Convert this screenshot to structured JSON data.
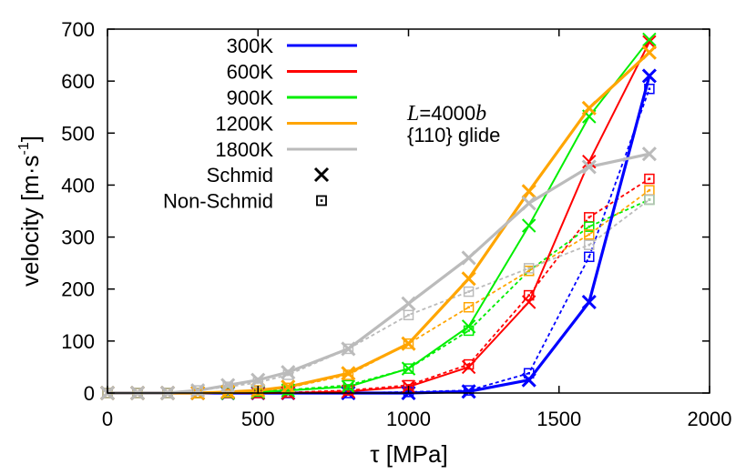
{
  "chart_data": {
    "type": "line",
    "title": "",
    "xlabel": "τ [MPa]",
    "ylabel_main": "velocity [m·s",
    "ylabel_exp": "-1",
    "ylabel_end": "]",
    "xlim": [
      0,
      2000
    ],
    "ylim": [
      0,
      700
    ],
    "xticks": [
      0,
      500,
      1000,
      1500,
      2000
    ],
    "yticks": [
      0,
      100,
      200,
      300,
      400,
      500,
      600,
      700
    ],
    "legend_position": "top-left",
    "annotation_italic": "L",
    "annotation_line1_rest": "=4000",
    "annotation_italic2": "b",
    "annotation_line2": "{110} glide",
    "marker_legend": [
      {
        "label": "Schmid",
        "marker": "cross"
      },
      {
        "label": "Non-Schmid",
        "marker": "dotted-square"
      }
    ],
    "series": [
      {
        "name": "300K",
        "color": "#0000ff",
        "schmid_x": [
          0,
          100,
          200,
          300,
          400,
          500,
          600,
          800,
          1000,
          1200,
          1400,
          1600,
          1800
        ],
        "schmid_y": [
          0,
          0,
          0,
          0,
          0,
          0,
          0,
          0,
          0,
          3,
          25,
          175,
          610
        ],
        "nonschmid_x": [
          0,
          100,
          200,
          300,
          400,
          500,
          600,
          800,
          1000,
          1200,
          1400,
          1600,
          1800
        ],
        "nonschmid_y": [
          0,
          0,
          0,
          0,
          0,
          0,
          0,
          0,
          2,
          5,
          38,
          262,
          585
        ]
      },
      {
        "name": "600K",
        "color": "#ff0000",
        "schmid_x": [
          0,
          100,
          200,
          300,
          400,
          500,
          600,
          800,
          1000,
          1200,
          1400,
          1600,
          1800
        ],
        "schmid_y": [
          0,
          0,
          0,
          0,
          0,
          0,
          0,
          3,
          12,
          50,
          175,
          445,
          675
        ],
        "nonschmid_x": [
          0,
          100,
          200,
          300,
          400,
          500,
          600,
          800,
          1000,
          1200,
          1400,
          1600,
          1800
        ],
        "nonschmid_y": [
          0,
          0,
          0,
          0,
          0,
          0,
          1,
          5,
          15,
          55,
          188,
          338,
          412
        ]
      },
      {
        "name": "900K",
        "color": "#00ee00",
        "schmid_x": [
          0,
          100,
          200,
          300,
          400,
          500,
          600,
          800,
          1000,
          1200,
          1400,
          1600,
          1800
        ],
        "schmid_y": [
          0,
          0,
          0,
          0,
          0,
          2,
          5,
          12,
          47,
          128,
          322,
          532,
          680
        ],
        "nonschmid_x": [
          0,
          100,
          200,
          300,
          400,
          500,
          600,
          800,
          1000,
          1200,
          1400,
          1600,
          1800
        ],
        "nonschmid_y": [
          0,
          0,
          0,
          0,
          1,
          3,
          6,
          15,
          47,
          120,
          235,
          320,
          372
        ]
      },
      {
        "name": "1200K",
        "color": "#ffa500",
        "schmid_x": [
          0,
          100,
          200,
          300,
          400,
          500,
          600,
          800,
          1000,
          1200,
          1400,
          1600,
          1800
        ],
        "schmid_y": [
          0,
          0,
          0,
          0,
          2,
          5,
          12,
          38,
          95,
          220,
          388,
          548,
          655
        ],
        "nonschmid_x": [
          0,
          100,
          200,
          300,
          400,
          500,
          600,
          800,
          1000,
          1200,
          1400,
          1600,
          1800
        ],
        "nonschmid_y": [
          0,
          0,
          0,
          0,
          2,
          5,
          10,
          35,
          95,
          165,
          235,
          305,
          390
        ]
      },
      {
        "name": "1800K",
        "color": "#bbbbbb",
        "schmid_x": [
          0,
          100,
          200,
          300,
          400,
          500,
          600,
          800,
          1000,
          1200,
          1400,
          1600,
          1800
        ],
        "schmid_y": [
          0,
          0,
          0,
          5,
          15,
          25,
          40,
          85,
          172,
          260,
          365,
          435,
          460
        ],
        "nonschmid_x": [
          0,
          100,
          200,
          300,
          400,
          500,
          600,
          800,
          1000,
          1200,
          1400,
          1600,
          1800
        ],
        "nonschmid_y": [
          0,
          0,
          0,
          5,
          12,
          20,
          35,
          85,
          150,
          195,
          240,
          285,
          372
        ]
      }
    ]
  }
}
